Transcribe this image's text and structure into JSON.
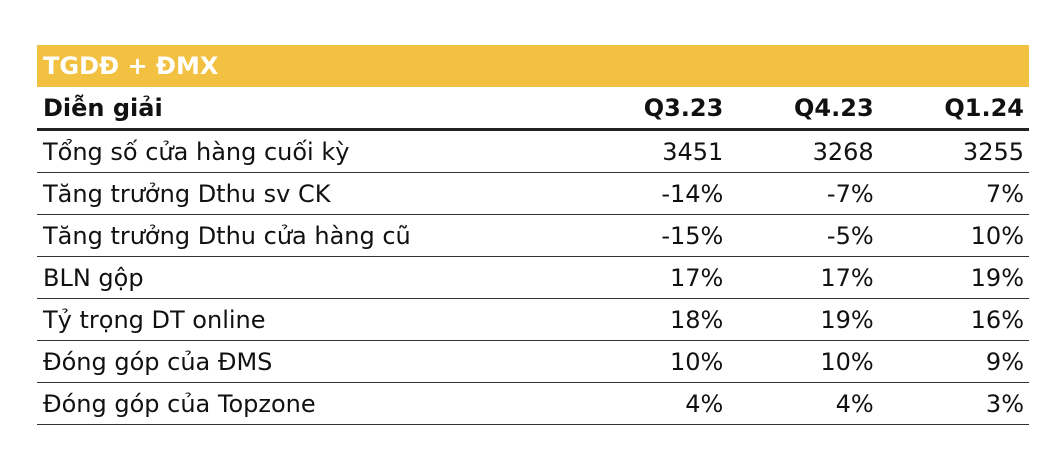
{
  "header": {
    "title": "TGDĐ + ĐMX"
  },
  "table": {
    "columns": [
      "Diễn giải",
      "Q3.23",
      "Q4.23",
      "Q1.24"
    ],
    "rows": [
      [
        "Tổng số cửa hàng cuối kỳ",
        "3451",
        "3268",
        "3255"
      ],
      [
        "Tăng trưởng Dthu sv CK",
        "-14%",
        "-7%",
        "7%"
      ],
      [
        "Tăng trưởng Dthu cửa hàng cũ",
        "-15%",
        "-5%",
        "10%"
      ],
      [
        "BLN gộp",
        "17%",
        "17%",
        "19%"
      ],
      [
        "Tỷ trọng DT online",
        "18%",
        "19%",
        "16%"
      ],
      [
        "Đóng góp của ĐMS",
        "10%",
        "10%",
        "9%"
      ],
      [
        "Đóng góp của Topzone",
        "4%",
        "4%",
        "3%"
      ]
    ]
  }
}
